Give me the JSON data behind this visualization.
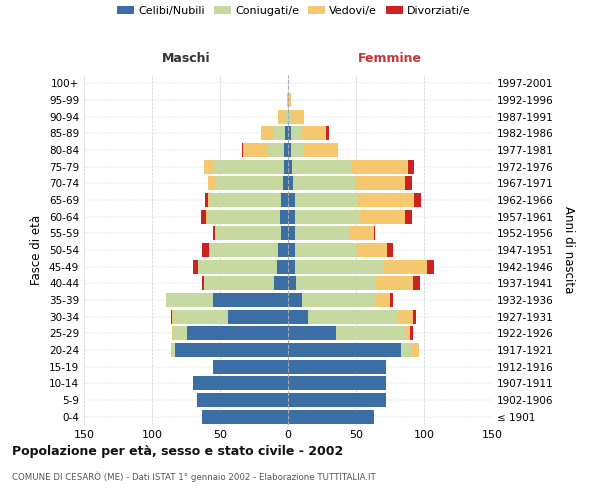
{
  "age_groups": [
    "100+",
    "95-99",
    "90-94",
    "85-89",
    "80-84",
    "75-79",
    "70-74",
    "65-69",
    "60-64",
    "55-59",
    "50-54",
    "45-49",
    "40-44",
    "35-39",
    "30-34",
    "25-29",
    "20-24",
    "15-19",
    "10-14",
    "5-9",
    "0-4"
  ],
  "birth_years": [
    "≤ 1901",
    "1902-1906",
    "1907-1911",
    "1912-1916",
    "1917-1921",
    "1922-1926",
    "1927-1931",
    "1932-1936",
    "1937-1941",
    "1942-1946",
    "1947-1951",
    "1952-1956",
    "1957-1961",
    "1962-1966",
    "1967-1971",
    "1972-1976",
    "1977-1981",
    "1982-1986",
    "1987-1991",
    "1992-1996",
    "1997-2001"
  ],
  "males": {
    "celibi": [
      0,
      0,
      0,
      2,
      3,
      3,
      4,
      5,
      6,
      5,
      7,
      8,
      10,
      55,
      44,
      74,
      83,
      55,
      70,
      67,
      63
    ],
    "coniugati": [
      0,
      0,
      2,
      8,
      12,
      52,
      50,
      52,
      53,
      48,
      50,
      58,
      52,
      35,
      40,
      10,
      2,
      0,
      0,
      0,
      0
    ],
    "vedovi": [
      0,
      1,
      5,
      10,
      18,
      7,
      5,
      2,
      1,
      1,
      1,
      0,
      0,
      0,
      1,
      1,
      1,
      0,
      0,
      0,
      0
    ],
    "divorziati": [
      0,
      0,
      0,
      0,
      1,
      0,
      0,
      2,
      4,
      1,
      5,
      4,
      1,
      0,
      1,
      0,
      0,
      0,
      0,
      0,
      0
    ]
  },
  "females": {
    "nubili": [
      0,
      0,
      0,
      2,
      2,
      3,
      4,
      5,
      5,
      5,
      5,
      5,
      6,
      10,
      15,
      35,
      83,
      72,
      72,
      72,
      63
    ],
    "coniugate": [
      0,
      0,
      2,
      8,
      10,
      43,
      45,
      46,
      48,
      40,
      46,
      65,
      58,
      55,
      65,
      52,
      8,
      0,
      0,
      0,
      0
    ],
    "vedove": [
      0,
      2,
      10,
      18,
      25,
      42,
      37,
      42,
      33,
      18,
      22,
      32,
      28,
      10,
      12,
      3,
      5,
      0,
      0,
      0,
      0
    ],
    "divorziate": [
      0,
      0,
      0,
      2,
      0,
      5,
      5,
      5,
      5,
      1,
      4,
      5,
      5,
      2,
      2,
      2,
      0,
      0,
      0,
      0,
      0
    ]
  },
  "colors": {
    "celibi": "#3a6ea5",
    "coniugati": "#c5d9a0",
    "vedovi": "#f4c86f",
    "divorziati": "#cc2222"
  },
  "xlim": 150,
  "title": "Popolazione per età, sesso e stato civile - 2002",
  "subtitle": "COMUNE DI CESARÒ (ME) - Dati ISTAT 1° gennaio 2002 - Elaborazione TUTTITALIA.IT",
  "ylabel_left": "Fasce di età",
  "ylabel_right": "Anni di nascita",
  "xlabel_maschi": "Maschi",
  "xlabel_femmine": "Femmine",
  "bg_color": "#ffffff",
  "grid_color": "#cccccc",
  "legend_labels": [
    "Celibi/Nubili",
    "Coniugati/e",
    "Vedovi/e",
    "Divorziati/e"
  ]
}
